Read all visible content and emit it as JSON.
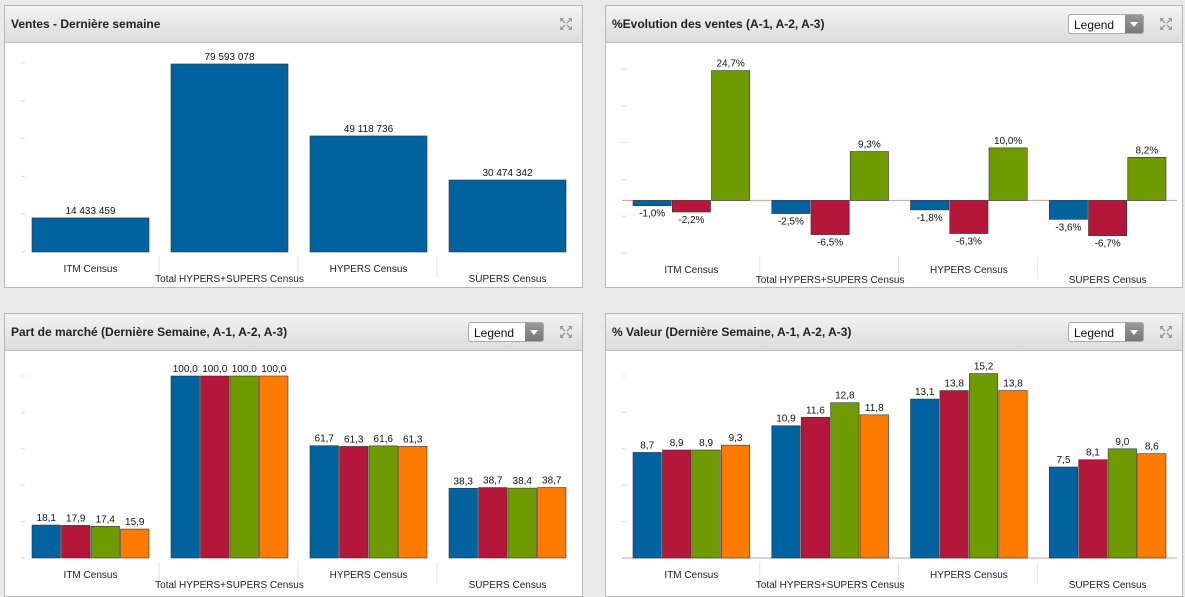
{
  "colors": {
    "blue": "#0063a0",
    "red": "#b5173b",
    "green": "#6f9a00",
    "orange": "#ff7b00"
  },
  "panels": [
    {
      "title": "Ventes - Dernière semaine",
      "has_legend": false,
      "icons": [
        "expand-icon"
      ]
    },
    {
      "title": "%Evolution des ventes (A-1, A-2, A-3)",
      "has_legend": true,
      "legend_label": "Legend",
      "icons": [
        "expand-icon",
        "chevron-down-icon"
      ]
    },
    {
      "title": "Part de marché (Dernière Semaine, A-1, A-2, A-3)",
      "has_legend": true,
      "legend_label": "Legend",
      "icons": [
        "expand-icon",
        "chevron-down-icon"
      ]
    },
    {
      "title": "% Valeur (Dernière Semaine, A-1, A-2, A-3)",
      "has_legend": true,
      "legend_label": "Legend",
      "icons": [
        "expand-icon",
        "chevron-down-icon"
      ]
    }
  ],
  "chart_data": [
    {
      "type": "bar",
      "title": "Ventes - Dernière semaine",
      "categories": [
        "ITM Census",
        "Total HYPERS+SUPERS Census",
        "HYPERS Census",
        "SUPERS Census"
      ],
      "series": [
        {
          "values": [
            14433459,
            79593078,
            49118736,
            30474342
          ],
          "labels": [
            "14 433 459",
            "79 593 078",
            "49 118 736",
            "30 474 342"
          ]
        }
      ],
      "ylim": [
        0,
        80000000
      ]
    },
    {
      "type": "bar",
      "title": "%Evolution des ventes (A-1, A-2, A-3)",
      "categories": [
        "ITM Census",
        "Total HYPERS+SUPERS Census",
        "HYPERS Census",
        "SUPERS Census"
      ],
      "series": [
        {
          "values": [
            -1.0,
            -2.5,
            -1.8,
            -3.6
          ],
          "labels": [
            "-1,0%",
            "-2,5%",
            "-1,8%",
            "-3,6%"
          ]
        },
        {
          "values": [
            -2.2,
            -6.5,
            -6.3,
            -6.7
          ],
          "labels": [
            "-2,2%",
            "-6,5%",
            "-6,3%",
            "-6,7%"
          ]
        },
        {
          "values": [
            24.7,
            9.3,
            10.0,
            8.2
          ],
          "labels": [
            "24,7%",
            "9,3%",
            "10,0%",
            "8,2%"
          ]
        }
      ],
      "ylim": [
        -10,
        25
      ]
    },
    {
      "type": "bar",
      "title": "Part de marché (Dernière Semaine, A-1, A-2, A-3)",
      "categories": [
        "ITM Census",
        "Total HYPERS+SUPERS Census",
        "HYPERS Census",
        "SUPERS Census"
      ],
      "series": [
        {
          "values": [
            18.1,
            100.0,
            61.7,
            38.3
          ],
          "labels": [
            "18,1",
            "100,0",
            "61,7",
            "38,3"
          ]
        },
        {
          "values": [
            17.9,
            100.0,
            61.3,
            38.7
          ],
          "labels": [
            "17,9",
            "100,0",
            "61,3",
            "38,7"
          ]
        },
        {
          "values": [
            17.4,
            100.0,
            61.6,
            38.4
          ],
          "labels": [
            "17,4",
            "100,0",
            "61,6",
            "38,4"
          ]
        },
        {
          "values": [
            15.9,
            100.0,
            61.3,
            38.7
          ],
          "labels": [
            "15,9",
            "100,0",
            "61,3",
            "38,7"
          ]
        }
      ],
      "ylim": [
        0,
        100
      ]
    },
    {
      "type": "bar",
      "title": "% Valeur (Dernière Semaine, A-1, A-2, A-3)",
      "categories": [
        "ITM Census",
        "Total HYPERS+SUPERS Census",
        "HYPERS Census",
        "SUPERS Census"
      ],
      "series": [
        {
          "values": [
            8.7,
            10.9,
            13.1,
            7.5
          ],
          "labels": [
            "8,7",
            "10,9",
            "13,1",
            "7,5"
          ]
        },
        {
          "values": [
            8.9,
            11.6,
            13.8,
            8.1
          ],
          "labels": [
            "8,9",
            "11,6",
            "13,8",
            "8,1"
          ]
        },
        {
          "values": [
            8.9,
            12.8,
            15.2,
            9.0
          ],
          "labels": [
            "8,9",
            "12,8",
            "15,2",
            "9,0"
          ]
        },
        {
          "values": [
            9.3,
            11.8,
            13.8,
            8.6
          ],
          "labels": [
            "9,3",
            "11,8",
            "13,8",
            "8,6"
          ]
        }
      ],
      "ylim": [
        0,
        15
      ]
    }
  ]
}
